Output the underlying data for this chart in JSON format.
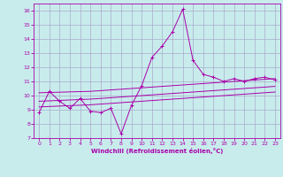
{
  "xlabel": "Windchill (Refroidissement éolien,°C)",
  "background_color": "#c8ecec",
  "grid_color": "#aaaacc",
  "line_color": "#aa00aa",
  "x_values": [
    0,
    1,
    2,
    3,
    4,
    5,
    6,
    7,
    8,
    9,
    10,
    11,
    12,
    13,
    14,
    15,
    16,
    17,
    18,
    19,
    20,
    21,
    22,
    23
  ],
  "main_line": [
    8.8,
    10.3,
    9.6,
    9.1,
    9.8,
    8.9,
    8.8,
    9.1,
    7.3,
    9.3,
    10.7,
    12.7,
    13.5,
    14.5,
    16.1,
    12.5,
    11.5,
    11.3,
    11.0,
    11.2,
    11.0,
    11.2,
    11.3,
    11.1
  ],
  "trend_line1": [
    10.2,
    10.22,
    10.24,
    10.26,
    10.28,
    10.3,
    10.35,
    10.4,
    10.45,
    10.5,
    10.55,
    10.6,
    10.65,
    10.7,
    10.75,
    10.8,
    10.85,
    10.9,
    10.95,
    11.0,
    11.05,
    11.1,
    11.15,
    11.2
  ],
  "trend_line2": [
    9.6,
    9.63,
    9.66,
    9.69,
    9.72,
    9.75,
    9.8,
    9.85,
    9.9,
    9.95,
    10.0,
    10.05,
    10.1,
    10.15,
    10.2,
    10.25,
    10.3,
    10.35,
    10.4,
    10.45,
    10.5,
    10.55,
    10.6,
    10.65
  ],
  "trend_line3": [
    9.2,
    9.23,
    9.26,
    9.29,
    9.32,
    9.35,
    9.4,
    9.45,
    9.5,
    9.55,
    9.6,
    9.65,
    9.7,
    9.75,
    9.8,
    9.85,
    9.9,
    9.95,
    10.0,
    10.05,
    10.1,
    10.15,
    10.2,
    10.25
  ],
  "ylim": [
    7,
    16.5
  ],
  "yticks": [
    7,
    8,
    9,
    10,
    11,
    12,
    13,
    14,
    15,
    16
  ],
  "xlim": [
    -0.5,
    23.5
  ],
  "xticks": [
    0,
    1,
    2,
    3,
    4,
    5,
    6,
    7,
    8,
    9,
    10,
    11,
    12,
    13,
    14,
    15,
    16,
    17,
    18,
    19,
    20,
    21,
    22,
    23
  ]
}
